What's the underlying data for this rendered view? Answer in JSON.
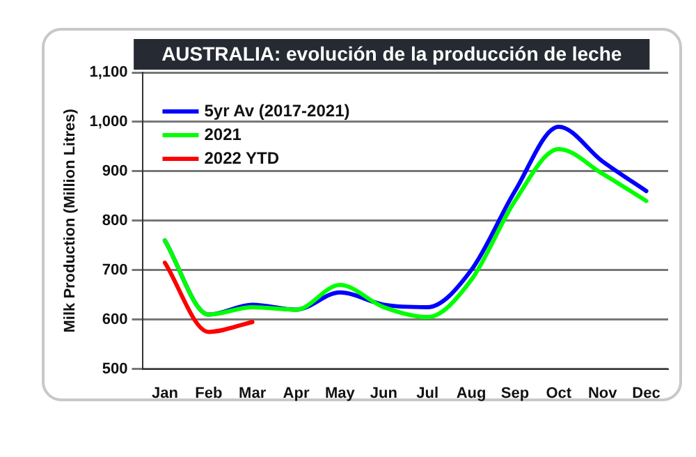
{
  "chart_data": {
    "type": "line",
    "title": "AUSTRALIA: evolución de la producción de leche",
    "ylabel": "Milk Production (Million Litres)",
    "categories": [
      "Jan",
      "Feb",
      "Mar",
      "Apr",
      "May",
      "Jun",
      "Jul",
      "Aug",
      "Sep",
      "Oct",
      "Nov",
      "Dec"
    ],
    "series": [
      {
        "name": "5yr Av (2017-2021)",
        "color": "#0000ff",
        "values": [
          760,
          610,
          630,
          620,
          655,
          630,
          625,
          700,
          860,
          990,
          920,
          860
        ]
      },
      {
        "name": "2021",
        "color": "#00ff00",
        "values": [
          760,
          610,
          625,
          620,
          670,
          625,
          605,
          680,
          840,
          945,
          895,
          840
        ]
      },
      {
        "name": "2022 YTD",
        "color": "#ff0000",
        "values": [
          715,
          575,
          595,
          null,
          null,
          null,
          null,
          null,
          null,
          null,
          null,
          null
        ]
      }
    ],
    "ylim": [
      500,
      1100
    ],
    "yticks": [
      {
        "value": 500,
        "label": "500"
      },
      {
        "value": 600,
        "label": "600"
      },
      {
        "value": 700,
        "label": "700"
      },
      {
        "value": 800,
        "label": "800"
      },
      {
        "value": 900,
        "label": "900"
      },
      {
        "value": 1000,
        "label": "1,000"
      },
      {
        "value": 1100,
        "label": "1,100"
      }
    ],
    "grid": "y",
    "legend": "top left",
    "marker": "none",
    "line_style": "solid"
  }
}
